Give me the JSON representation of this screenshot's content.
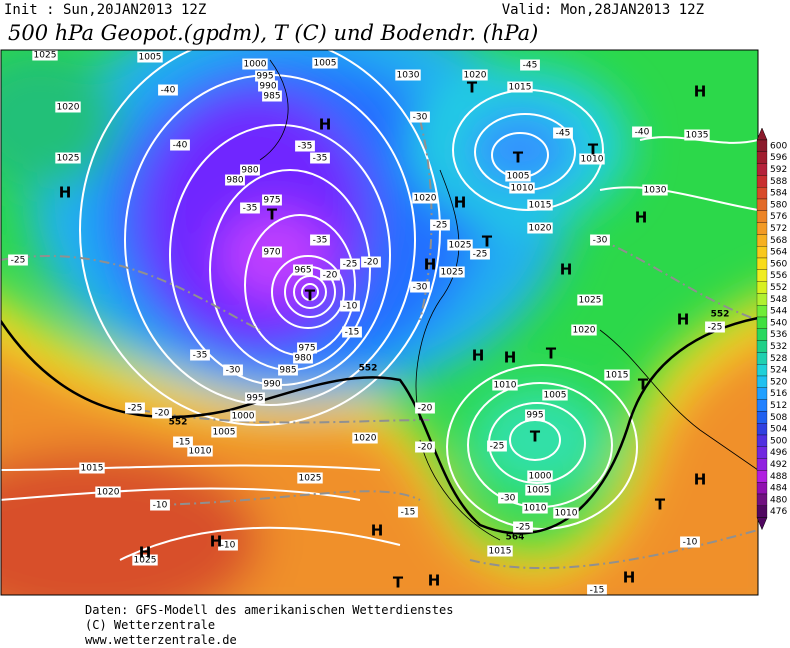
{
  "header": {
    "init": "Init : Sun,20JAN2013 12Z",
    "valid": "Valid: Mon,28JAN2013 12Z",
    "title": "500 hPa Geopot.(gpdm), T (C) und Bodendr. (hPa)"
  },
  "map": {
    "pressure_labels": [
      1025,
      1005,
      1000,
      995,
      990,
      985,
      1005,
      1030,
      1020,
      1015,
      1020,
      1025,
      980,
      980,
      975,
      970,
      965,
      1020,
      1025,
      1025,
      1005,
      1010,
      1010,
      1015,
      1020,
      1030,
      1035,
      1025,
      1020,
      1015,
      1010,
      1005,
      995,
      1000,
      1005,
      1010,
      1010,
      975,
      980,
      985,
      990,
      995,
      1000,
      1005,
      1010,
      1020,
      1015,
      1020,
      1025,
      1025,
      1015
    ],
    "temperature_labels": [
      -45,
      -40,
      -45,
      -40,
      -40,
      -35,
      -35,
      -35,
      -35,
      -30,
      -30,
      -25,
      -25,
      -25,
      -25,
      -20,
      -20,
      -30,
      -15,
      -10,
      -35,
      -30,
      -25,
      -20,
      -15,
      -20,
      -20,
      -25,
      -30,
      -25,
      -15,
      -10,
      -10,
      -10,
      -15,
      -25
    ],
    "contour_labels": [
      552,
      552,
      564,
      552
    ],
    "centers": [
      "H",
      "T",
      "H",
      "T",
      "T",
      "H",
      "H",
      "T",
      "H",
      "H",
      "H",
      "T",
      "T",
      "H",
      "T",
      "H",
      "T",
      "H",
      "T",
      "H",
      "T",
      "H",
      "H",
      "H",
      "T",
      "H",
      "H"
    ]
  },
  "colorbar": {
    "labels": [
      600,
      596,
      592,
      588,
      584,
      580,
      576,
      572,
      568,
      564,
      560,
      556,
      552,
      548,
      544,
      540,
      536,
      532,
      528,
      524,
      520,
      516,
      512,
      508,
      504,
      500,
      496,
      492,
      488,
      484,
      480,
      476
    ],
    "colors": [
      "#8b1a2b",
      "#a01d2e",
      "#b4223a",
      "#c82f2f",
      "#d84a2a",
      "#e26a28",
      "#ec8426",
      "#f29a24",
      "#f6b020",
      "#f8c81c",
      "#f8dc1a",
      "#f0ec20",
      "#d8f020",
      "#b0f030",
      "#70ec38",
      "#40e040",
      "#28d860",
      "#20d088",
      "#20d0b0",
      "#20d0d8",
      "#20c0f0",
      "#20a0ff",
      "#2080ff",
      "#2060f0",
      "#3040e0",
      "#5030e0",
      "#7028e0",
      "#9020e0",
      "#b020e0",
      "#9010b0",
      "#701080",
      "#500860"
    ]
  },
  "footer": [
    "Daten: GFS-Modell des amerikanischen Wetterdienstes",
    "(C) Wetterzentrale",
    "www.wetterzentrale.de"
  ]
}
